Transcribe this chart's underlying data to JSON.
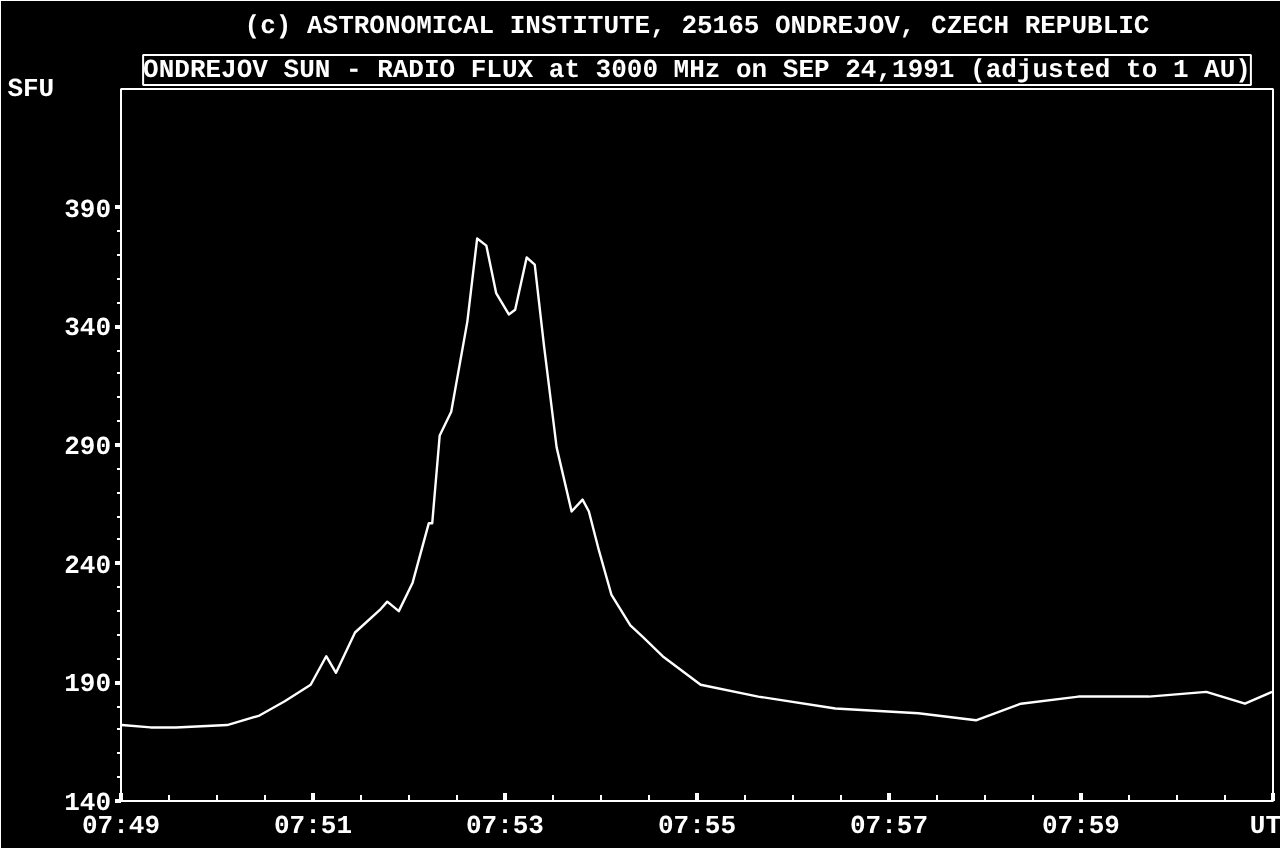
{
  "chart_data": {
    "type": "line",
    "title": "(c) ASTRONOMICAL INSTITUTE, 25165 ONDREJOV, CZECH REPUBLIC",
    "subtitle": "ONDREJOV SUN - RADIO FLUX at 3000 MHz on SEP 24,1991 (adjusted to 1 AU)",
    "ylabel": "SFU",
    "x": [
      7.8168,
      7.8218,
      7.8262,
      7.8351,
      7.8407,
      7.8451,
      7.8496,
      7.8523,
      7.854,
      7.8573,
      7.8618,
      7.8629,
      7.8649,
      7.8673,
      7.8701,
      7.8707,
      7.872,
      7.874,
      7.8768,
      7.8785,
      7.8801,
      7.8818,
      7.884,
      7.8851,
      7.8871,
      7.8885,
      7.8901,
      7.8923,
      7.8949,
      7.8968,
      7.8979,
      7.8996,
      7.9018,
      7.9051,
      7.9073,
      7.9107,
      7.9173,
      7.9273,
      7.9407,
      7.9551,
      7.9651,
      7.9729,
      7.9829,
      7.9951,
      8.0051,
      8.0118,
      8.0165
    ],
    "series": [
      {
        "color": "#ffffff",
        "values": [
          172,
          171,
          171,
          172,
          176,
          182,
          189,
          201,
          194,
          211,
          221,
          224,
          220,
          232,
          257,
          257,
          294,
          304,
          342,
          377,
          374,
          354,
          345,
          347,
          369,
          366,
          332,
          289,
          262,
          267,
          262,
          246,
          227,
          214,
          209,
          201,
          189,
          184,
          179,
          177,
          174,
          181,
          184,
          184,
          186,
          181,
          186
        ]
      }
    ],
    "xlim": [
      7.81667,
      8.01667
    ],
    "xticks": [
      {
        "value": 7.81667,
        "label": "07:49"
      },
      {
        "value": 7.85,
        "label": "07:51"
      },
      {
        "value": 7.88333,
        "label": "07:53"
      },
      {
        "value": 7.91667,
        "label": "07:55"
      },
      {
        "value": 7.95,
        "label": "07:57"
      },
      {
        "value": 7.98333,
        "label": "07:59"
      },
      {
        "value": 8.01667,
        "label": "UT"
      }
    ],
    "ylim": [
      140,
      440
    ],
    "yticks": [
      140,
      190,
      240,
      290,
      340,
      390
    ],
    "grid": false,
    "marker": "none",
    "line_style": "solid"
  }
}
